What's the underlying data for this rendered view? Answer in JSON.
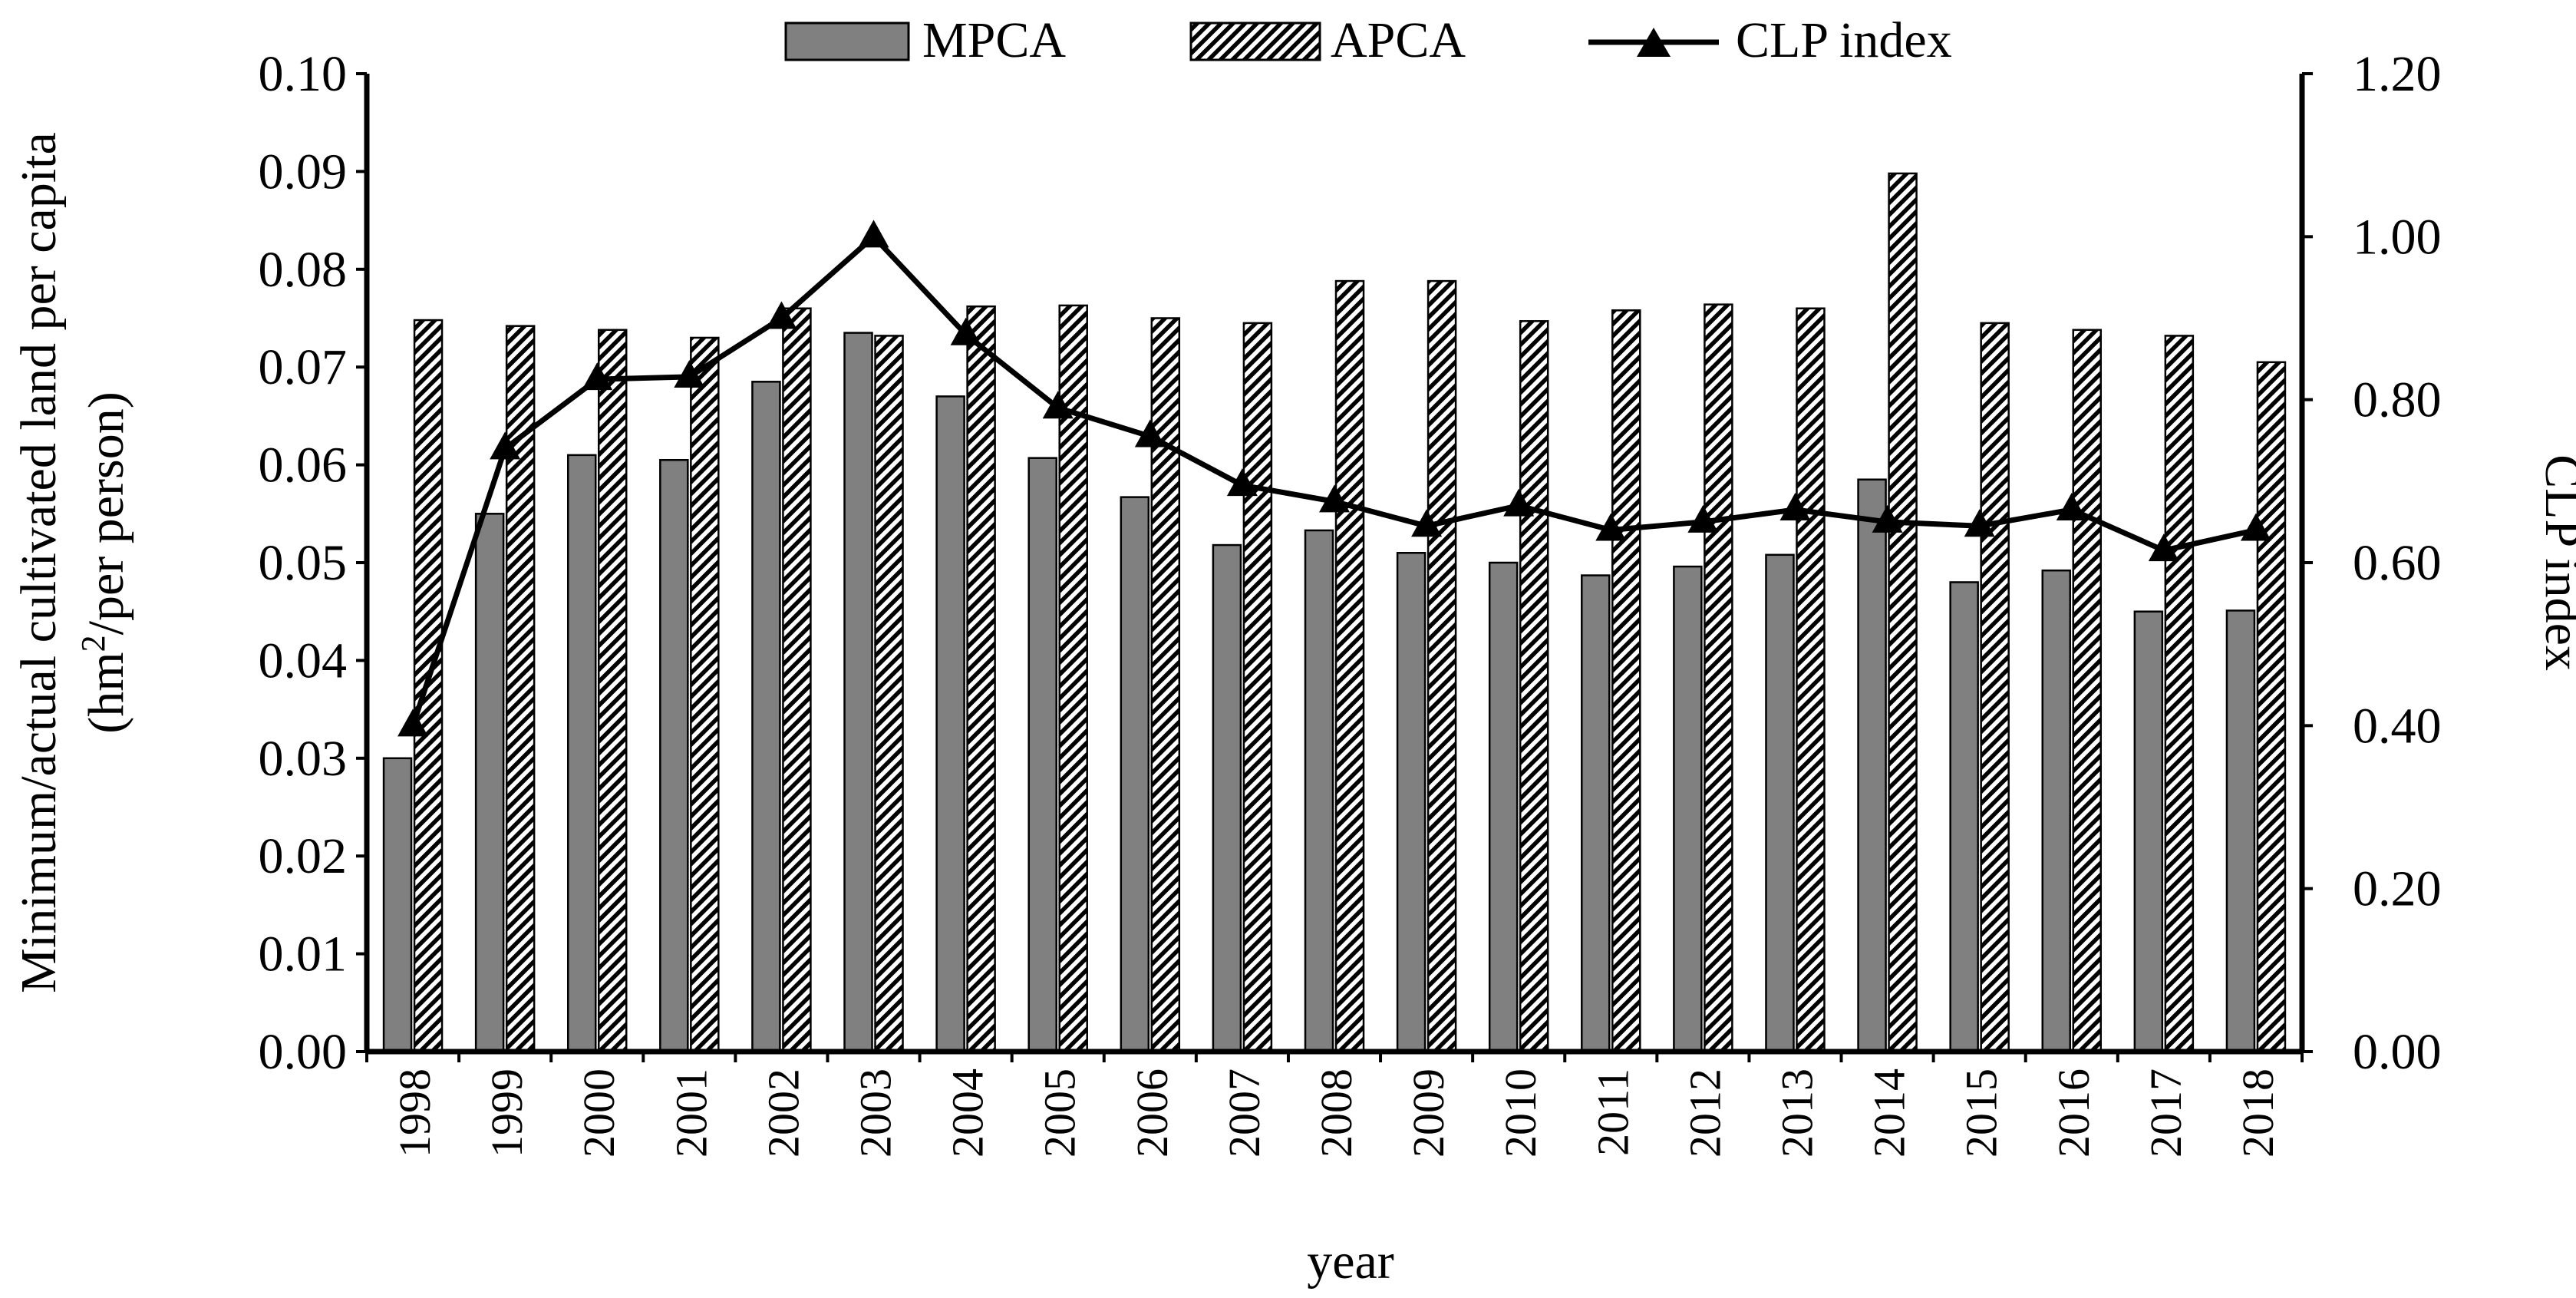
{
  "chart_data": {
    "type": "bar",
    "categories": [
      "1998",
      "1999",
      "2000",
      "2001",
      "2002",
      "2003",
      "2004",
      "2005",
      "2006",
      "2007",
      "2008",
      "2009",
      "2010",
      "2011",
      "2012",
      "2013",
      "2014",
      "2015",
      "2016",
      "2017",
      "2018"
    ],
    "series": [
      {
        "name": "MPCA",
        "type": "bar",
        "axis": "left",
        "color": "#808080",
        "values": [
          0.03,
          0.055,
          0.061,
          0.0605,
          0.0685,
          0.0735,
          0.067,
          0.0607,
          0.0567,
          0.0518,
          0.0533,
          0.051,
          0.05,
          0.0487,
          0.0496,
          0.0508,
          0.0585,
          0.048,
          0.0492,
          0.045,
          0.0451
        ]
      },
      {
        "name": "APCA",
        "type": "bar",
        "axis": "left",
        "pattern": "diagonal-hatch",
        "values": [
          0.0748,
          0.0742,
          0.0738,
          0.073,
          0.076,
          0.0732,
          0.0762,
          0.0763,
          0.075,
          0.0745,
          0.0788,
          0.0788,
          0.0747,
          0.0758,
          0.0764,
          0.076,
          0.0898,
          0.0745,
          0.0738,
          0.0732,
          0.0705
        ]
      },
      {
        "name": "CLP index",
        "type": "line",
        "axis": "right",
        "marker": "triangle",
        "color": "#000000",
        "values": [
          0.4,
          0.74,
          0.825,
          0.828,
          0.9,
          1.0,
          0.88,
          0.79,
          0.755,
          0.695,
          0.675,
          0.645,
          0.67,
          0.64,
          0.65,
          0.665,
          0.65,
          0.645,
          0.665,
          0.615,
          0.64
        ]
      }
    ],
    "xlabel": "year",
    "ylabel_line1": "Minimum/actual cultivated land per capita",
    "ylabel_line2_prefix": "(hm",
    "ylabel_line2_sup": "2",
    "ylabel_line2_suffix": "/per person)",
    "y2label": "CLP index",
    "ylim": [
      0,
      0.1
    ],
    "y2lim": [
      0,
      1.2
    ],
    "yticks": [
      "0.00",
      "0.01",
      "0.02",
      "0.03",
      "0.04",
      "0.05",
      "0.06",
      "0.07",
      "0.08",
      "0.09",
      "0.10"
    ],
    "y2ticks": [
      "0.00",
      "0.20",
      "0.40",
      "0.60",
      "0.80",
      "1.00",
      "1.20"
    ],
    "legend": {
      "position": "top",
      "items": [
        "MPCA",
        "APCA",
        "CLP index"
      ]
    }
  }
}
